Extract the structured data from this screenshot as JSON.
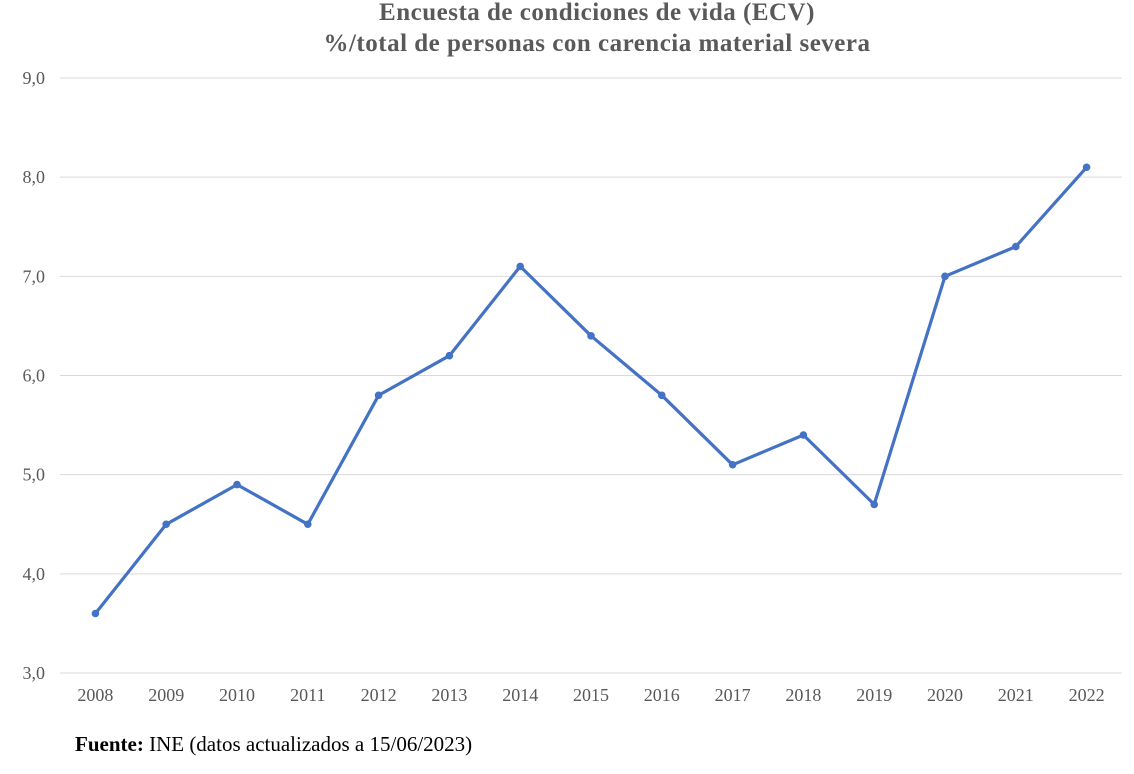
{
  "chart_data": {
    "type": "line",
    "title": "Encuesta de condiciones de vida (ECV)",
    "subtitle": "%/total de personas con carencia material severa",
    "categories": [
      "2008",
      "2009",
      "2010",
      "2011",
      "2012",
      "2013",
      "2014",
      "2015",
      "2016",
      "2017",
      "2018",
      "2019",
      "2020",
      "2021",
      "2022"
    ],
    "series": [
      {
        "name": "% personas con carencia material severa",
        "values": [
          3.6,
          4.5,
          4.9,
          4.5,
          5.8,
          6.2,
          7.1,
          6.4,
          5.8,
          5.1,
          5.4,
          4.7,
          7.0,
          7.3,
          8.1
        ]
      }
    ],
    "ylim": [
      3,
      9
    ],
    "yticks": [
      "3,0",
      "4,0",
      "5,0",
      "6,0",
      "7,0",
      "8,0",
      "9,0"
    ],
    "xlabel": "",
    "ylabel": "",
    "grid": true,
    "legend": "none",
    "line_color": "#4472C4",
    "grid_color": "#D9D9D9"
  },
  "source": {
    "label": "Fuente:",
    "text": "INE (datos actualizados a 15/06/2023)"
  }
}
